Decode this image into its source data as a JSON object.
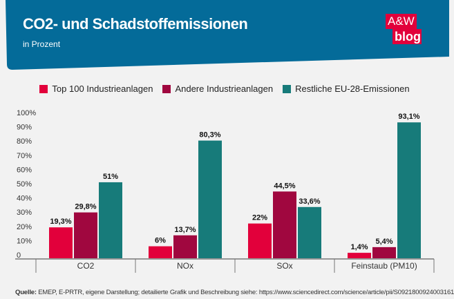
{
  "header": {
    "title": "CO2- und Schadstoffemissionen",
    "subtitle": "in Prozent",
    "logo": {
      "line1": "A&W",
      "line2": "blog"
    }
  },
  "colors": {
    "header_bg": "#046b99",
    "top100": "#e2003b",
    "andere": "#a0073f",
    "restliche": "#177b7a"
  },
  "chart_data": {
    "type": "bar",
    "title": "CO2- und Schadstoffemissionen",
    "subtitle": "in Prozent",
    "categories": [
      "CO2",
      "NOx",
      "SOx",
      "Feinstaub (PM10)"
    ],
    "series": [
      {
        "name": "Top 100 Industrieanlagen",
        "values": [
          19.3,
          6,
          22,
          1.4
        ],
        "labels": [
          "19,3%",
          "6%",
          "22%",
          "1,4%"
        ]
      },
      {
        "name": "Andere Industrieanlagen",
        "values": [
          29.8,
          13.7,
          44.5,
          5.4
        ],
        "labels": [
          "29,8%",
          "13,7%",
          "44,5%",
          "5,4%"
        ]
      },
      {
        "name": "Restliche EU-28-Emissionen",
        "values": [
          51,
          80.3,
          33.6,
          93.1
        ],
        "labels": [
          "51%",
          "80,3%",
          "33,6%",
          "93,1%"
        ]
      }
    ],
    "yticks": [
      "0",
      "10%",
      "20%",
      "30%",
      "40%",
      "50%",
      "60%",
      "70%",
      "80%",
      "90%",
      "100%"
    ],
    "ylim": [
      0,
      100
    ],
    "grid": false,
    "legend": "top"
  },
  "source": {
    "label": "Quelle:",
    "text": " EMEP, E-PRTR, eigene Darstellung; detailierte Grafik und Beschreibung siehe: https://www.sciencedirect.com/science/article/pii/S0921800924003161"
  }
}
